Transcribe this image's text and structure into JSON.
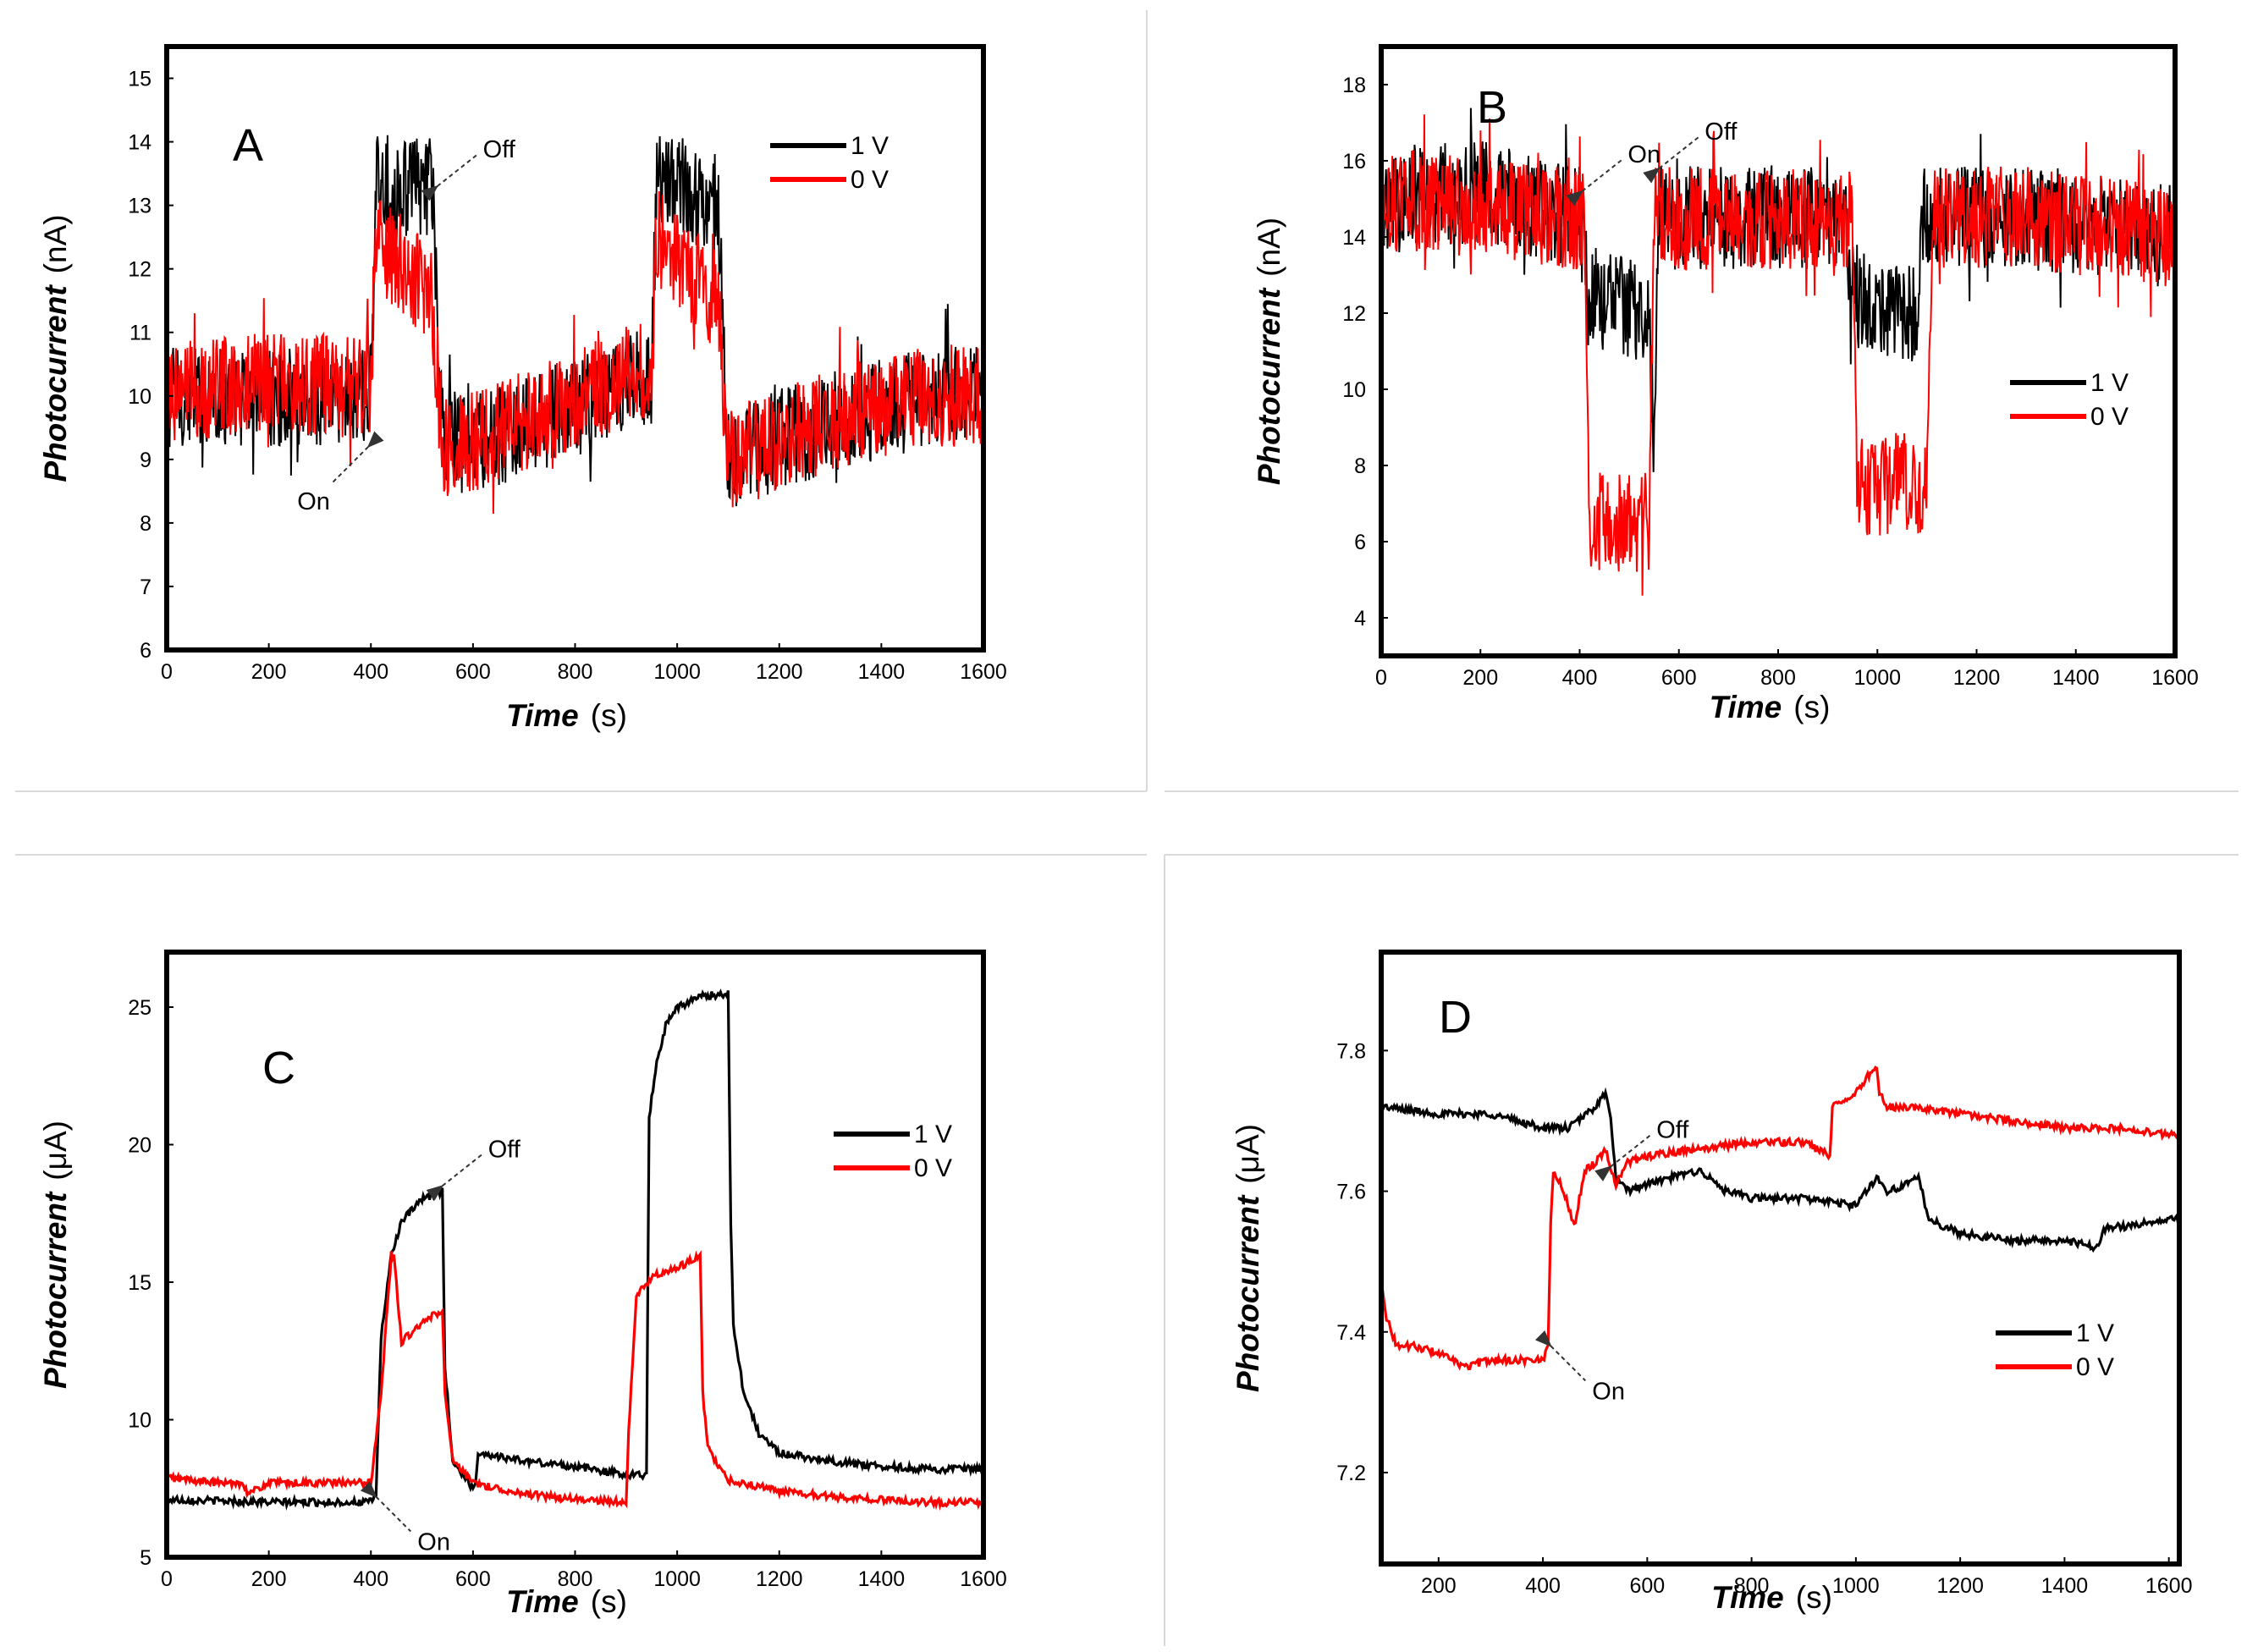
{
  "figure": {
    "colors": {
      "series_1V": "#000000",
      "series_0V": "#ff0000",
      "frame": "#000000",
      "arrow": "#333333"
    }
  },
  "chart_data": [
    {
      "type": "line",
      "panel_label": "A",
      "xlabel_italic": "Time",
      "xlabel_unit": "(s)",
      "ylabel_italic": "Photocurrent",
      "ylabel_unit": "(nA)",
      "xlim": [
        0,
        1600
      ],
      "ylim": [
        6,
        15.5
      ],
      "xticks": [
        "0",
        "200",
        "400",
        "600",
        "800",
        "1000",
        "1200",
        "1400",
        "1600"
      ],
      "yticks": [
        "6",
        "7",
        "8",
        "9",
        "10",
        "11",
        "12",
        "13",
        "14",
        "15"
      ],
      "legend_position": "top-right",
      "annotations": [
        {
          "text": "Off",
          "x": 530,
          "y": 13.3,
          "dir": "up-right"
        },
        {
          "text": "On",
          "x": 395,
          "y": 9.2,
          "dir": "down-left"
        }
      ],
      "series": [
        {
          "name": "1 V",
          "color": "#000000",
          "noise": "high",
          "x": [
            0,
            100,
            200,
            300,
            400,
            410,
            520,
            540,
            600,
            700,
            800,
            900,
            950,
            960,
            1080,
            1100,
            1200,
            1300,
            1400,
            1500,
            1600
          ],
          "y": [
            10,
            10,
            10,
            10,
            10,
            13.3,
            13.3,
            9.4,
            9.2,
            9.5,
            9.8,
            10.2,
            10.3,
            13.5,
            13.0,
            9.0,
            9.3,
            9.6,
            9.8,
            10.0,
            10.0
          ]
        },
        {
          "name": "0 V",
          "color": "#ff0000",
          "noise": "high",
          "x": [
            0,
            100,
            200,
            300,
            400,
            410,
            520,
            540,
            600,
            700,
            800,
            900,
            950,
            960,
            1080,
            1100,
            1200,
            1300,
            1400,
            1500,
            1600
          ],
          "y": [
            10.1,
            10.1,
            10.2,
            10.2,
            10.2,
            12.5,
            11.5,
            9.2,
            9.3,
            9.6,
            9.9,
            10.3,
            10.4,
            12.5,
            11.5,
            9.0,
            9.3,
            9.6,
            9.8,
            10.0,
            10.0
          ]
        }
      ]
    },
    {
      "type": "line",
      "panel_label": "B",
      "xlabel_italic": "Time",
      "xlabel_unit": "(s)",
      "ylabel_italic": "Photocurrent",
      "ylabel_unit": "(nA)",
      "xlim": [
        0,
        1600
      ],
      "ylim": [
        3,
        19
      ],
      "xticks": [
        "0",
        "200",
        "400",
        "600",
        "800",
        "1000",
        "1200",
        "1400",
        "1600"
      ],
      "yticks": [
        "4",
        "6",
        "8",
        "10",
        "12",
        "14",
        "16",
        "18"
      ],
      "legend_position": "center-right",
      "annotations": [
        {
          "text": "On",
          "x": 405,
          "y": 15.2,
          "dir": "up-right"
        },
        {
          "text": "Off",
          "x": 560,
          "y": 15.8,
          "dir": "up-right"
        }
      ],
      "series": [
        {
          "name": "1 V",
          "color": "#000000",
          "noise": "high",
          "x": [
            0,
            200,
            300,
            400,
            410,
            415,
            540,
            550,
            560,
            700,
            900,
            940,
            945,
            1080,
            1090,
            1100,
            1300,
            1600
          ],
          "y": [
            15,
            15.2,
            14.8,
            14.5,
            14.3,
            12.5,
            12.0,
            8.5,
            14.5,
            14.5,
            14.5,
            14.5,
            12.5,
            12.0,
            14.5,
            14.5,
            14.5,
            14.0
          ]
        },
        {
          "name": "0 V",
          "color": "#ff0000",
          "noise": "high",
          "x": [
            0,
            200,
            400,
            410,
            420,
            540,
            550,
            560,
            700,
            900,
            950,
            960,
            1100,
            1110,
            1120,
            1300,
            1600
          ],
          "y": [
            15,
            14.8,
            14.5,
            14.5,
            6.5,
            6.5,
            14.5,
            14.5,
            14.5,
            14.5,
            14.5,
            7.5,
            7.5,
            14.5,
            14.5,
            14.5,
            14.0
          ]
        }
      ]
    },
    {
      "type": "line",
      "panel_label": "C",
      "xlabel_italic": "Time",
      "xlabel_unit": "(s)",
      "ylabel_italic": "Photocurrent",
      "ylabel_unit": "(μA)",
      "xlim": [
        0,
        1600
      ],
      "ylim": [
        5,
        27
      ],
      "xticks": [
        "0",
        "200",
        "400",
        "600",
        "800",
        "1000",
        "1200",
        "1400",
        "1600"
      ],
      "yticks": [
        "5",
        "10",
        "15",
        "20",
        "25"
      ],
      "legend_position": "center-right",
      "annotations": [
        {
          "text": "Off",
          "x": 540,
          "y": 18.5,
          "dir": "up-right"
        },
        {
          "text": "On",
          "x": 410,
          "y": 7.2,
          "dir": "down-right"
        }
      ],
      "series": [
        {
          "name": "1 V",
          "color": "#000000",
          "noise": "low",
          "x": [
            0,
            200,
            400,
            410,
            420,
            440,
            460,
            500,
            540,
            545,
            560,
            600,
            605,
            610,
            700,
            800,
            900,
            940,
            945,
            960,
            980,
            1000,
            1050,
            1100,
            1105,
            1110,
            1130,
            1160,
            1200,
            1300,
            1400,
            1500,
            1600
          ],
          "y": [
            7.1,
            7.0,
            7.0,
            7.3,
            13.0,
            16.0,
            17.2,
            18.0,
            18.3,
            12.0,
            8.5,
            7.5,
            7.7,
            8.8,
            8.5,
            8.3,
            8.0,
            8.0,
            21.0,
            23.0,
            24.5,
            25.0,
            25.4,
            25.5,
            17.0,
            13.5,
            11.0,
            9.5,
            8.8,
            8.5,
            8.3,
            8.2,
            8.2
          ]
        },
        {
          "name": "0 V",
          "color": "#ff0000",
          "noise": "low",
          "x": [
            0,
            100,
            150,
            160,
            200,
            300,
            400,
            420,
            440,
            445,
            460,
            470,
            500,
            540,
            545,
            560,
            600,
            700,
            800,
            900,
            905,
            920,
            950,
            1000,
            1045,
            1050,
            1060,
            1080,
            1100,
            1200,
            1300,
            1400,
            1500,
            1600
          ],
          "y": [
            7.9,
            7.7,
            7.7,
            7.3,
            7.7,
            7.7,
            7.7,
            11.0,
            16.0,
            16.0,
            12.8,
            13.0,
            13.5,
            14.0,
            11.0,
            8.5,
            7.7,
            7.3,
            7.1,
            7.0,
            9.5,
            14.5,
            15.2,
            15.5,
            16.0,
            11.0,
            9.0,
            8.3,
            7.8,
            7.4,
            7.2,
            7.1,
            7.0,
            7.0
          ]
        }
      ]
    },
    {
      "type": "line",
      "panel_label": "D",
      "xlabel_italic": "Time",
      "xlabel_unit": "(s)",
      "ylabel_italic": "Photocurrent",
      "ylabel_unit": "(μA)",
      "xlim": [
        90,
        1620
      ],
      "ylim": [
        7.07,
        7.94
      ],
      "xticks": [
        "200",
        "400",
        "600",
        "800",
        "1000",
        "1200",
        "1400",
        "1600"
      ],
      "yticks": [
        "7.2",
        "7.4",
        "7.6",
        "7.8"
      ],
      "legend_position": "bottom-right",
      "annotations": [
        {
          "text": "Off",
          "x": 530,
          "y": 7.635,
          "dir": "up-right"
        },
        {
          "text": "On",
          "x": 415,
          "y": 7.38,
          "dir": "down-right"
        }
      ],
      "series": [
        {
          "name": "1 V",
          "color": "#000000",
          "noise": "low",
          "x": [
            90,
            200,
            300,
            400,
            450,
            500,
            520,
            530,
            540,
            560,
            600,
            650,
            700,
            750,
            800,
            900,
            1000,
            1040,
            1060,
            1100,
            1120,
            1140,
            1200,
            1300,
            1400,
            1460,
            1480,
            1520,
            1600
          ],
          "y": [
            7.72,
            7.71,
            7.71,
            7.69,
            7.69,
            7.72,
            7.74,
            7.7,
            7.62,
            7.6,
            7.61,
            7.62,
            7.63,
            7.6,
            7.59,
            7.59,
            7.58,
            7.62,
            7.6,
            7.61,
            7.62,
            7.56,
            7.54,
            7.53,
            7.53,
            7.52,
            7.55,
            7.55,
            7.56
          ]
        },
        {
          "name": "0 V",
          "color": "#ff0000",
          "noise": "low",
          "x": [
            90,
            100,
            120,
            150,
            200,
            250,
            300,
            350,
            400,
            410,
            415,
            420,
            440,
            460,
            480,
            500,
            520,
            540,
            560,
            600,
            700,
            800,
            900,
            950,
            955,
            1000,
            1040,
            1045,
            1060,
            1100,
            1200,
            1300,
            1400,
            1500,
            1600
          ],
          "y": [
            7.48,
            7.42,
            7.38,
            7.38,
            7.37,
            7.35,
            7.36,
            7.36,
            7.36,
            7.38,
            7.56,
            7.63,
            7.6,
            7.55,
            7.63,
            7.64,
            7.66,
            7.61,
            7.64,
            7.65,
            7.66,
            7.67,
            7.67,
            7.65,
            7.72,
            7.74,
            7.78,
            7.74,
            7.72,
            7.72,
            7.71,
            7.7,
            7.69,
            7.69,
            7.68
          ]
        }
      ]
    }
  ]
}
